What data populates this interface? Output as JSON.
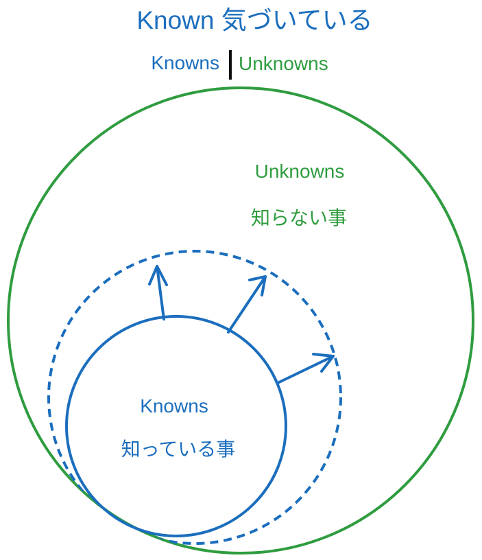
{
  "title": "Known 気づいている",
  "legend": {
    "known": "Knowns",
    "unknown": "Unknowns"
  },
  "outer_circle": {
    "label_en": "Unknowns",
    "label_ja": "知らない事"
  },
  "inner_circle": {
    "label_en": "Knowns",
    "label_ja": "知っている事"
  },
  "colors": {
    "known": "#1b6ebd",
    "unknown": "#2f9c3f",
    "divider": "#111111"
  }
}
